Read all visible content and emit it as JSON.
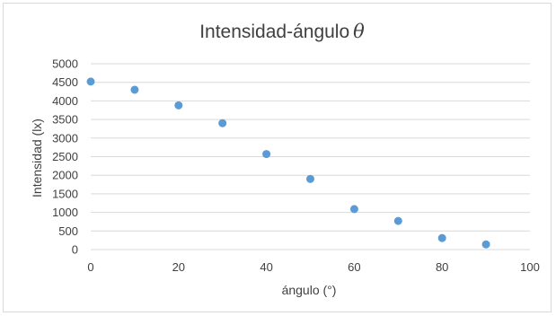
{
  "chart_data": {
    "type": "scatter",
    "title": "Intensidad-ángulo",
    "title_symbol": "θ",
    "xlabel": "ángulo (°)",
    "ylabel": "Intensidad (lx)",
    "xlim": [
      0,
      100
    ],
    "ylim": [
      0,
      5000
    ],
    "xticks": [
      0,
      20,
      40,
      60,
      80,
      100
    ],
    "yticks": [
      0,
      500,
      1000,
      1500,
      2000,
      2500,
      3000,
      3500,
      4000,
      4500,
      5000
    ],
    "grid": "horizontal",
    "legend": "none",
    "marker_color": "#5b9bd5",
    "gridline_color": "#d9d9d9",
    "series": [
      {
        "x": [
          0,
          10,
          20,
          30,
          40,
          50,
          60,
          70,
          80,
          90
        ],
        "y": [
          4520,
          4300,
          3880,
          3400,
          2570,
          1900,
          1090,
          770,
          310,
          140
        ]
      }
    ]
  }
}
